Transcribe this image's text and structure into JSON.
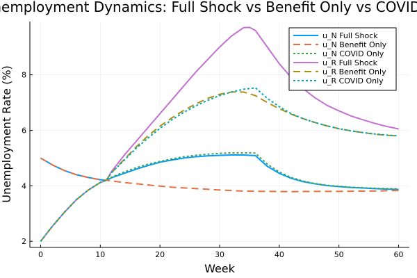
{
  "chart_data": {
    "type": "line",
    "title": "Unemployment Dynamics: Full Shock vs Benefit Only vs COVID Only",
    "xlabel": "Week",
    "ylabel": "Unemployment Rate (%)",
    "xlim": [
      -1.8,
      61.8
    ],
    "ylim": [
      1.78,
      9.92
    ],
    "xticks": [
      0,
      10,
      20,
      30,
      40,
      50,
      60
    ],
    "yticks": [
      2,
      4,
      6,
      8
    ],
    "grid": true,
    "legend_position": "top-right",
    "series": [
      {
        "name": "u_N Full Shock",
        "color": "#009AFA",
        "dash": "solid",
        "points": [
          [
            0,
            5.0
          ],
          [
            2,
            4.75
          ],
          [
            4,
            4.55
          ],
          [
            6,
            4.4
          ],
          [
            8,
            4.3
          ],
          [
            10,
            4.22
          ],
          [
            11,
            4.2
          ],
          [
            12,
            4.3
          ],
          [
            14,
            4.45
          ],
          [
            16,
            4.6
          ],
          [
            18,
            4.73
          ],
          [
            20,
            4.85
          ],
          [
            22,
            4.93
          ],
          [
            24,
            5.0
          ],
          [
            26,
            5.05
          ],
          [
            28,
            5.08
          ],
          [
            30,
            5.1
          ],
          [
            32,
            5.11
          ],
          [
            34,
            5.11
          ],
          [
            36,
            5.09
          ],
          [
            38,
            4.7
          ],
          [
            40,
            4.45
          ],
          [
            42,
            4.27
          ],
          [
            44,
            4.15
          ],
          [
            46,
            4.07
          ],
          [
            48,
            4.01
          ],
          [
            50,
            3.97
          ],
          [
            52,
            3.94
          ],
          [
            54,
            3.92
          ],
          [
            56,
            3.9
          ],
          [
            58,
            3.88
          ],
          [
            60,
            3.87
          ]
        ]
      },
      {
        "name": "u_N Benefit Only",
        "color": "#E36F47",
        "dash": "long-dash",
        "points": [
          [
            0,
            5.0
          ],
          [
            2,
            4.75
          ],
          [
            4,
            4.55
          ],
          [
            6,
            4.4
          ],
          [
            8,
            4.3
          ],
          [
            10,
            4.22
          ],
          [
            11,
            4.2
          ],
          [
            14,
            4.12
          ],
          [
            18,
            4.03
          ],
          [
            22,
            3.95
          ],
          [
            26,
            3.9
          ],
          [
            30,
            3.85
          ],
          [
            34,
            3.81
          ],
          [
            38,
            3.8
          ],
          [
            42,
            3.79
          ],
          [
            46,
            3.8
          ],
          [
            50,
            3.8
          ],
          [
            54,
            3.81
          ],
          [
            58,
            3.82
          ],
          [
            60,
            3.83
          ]
        ]
      },
      {
        "name": "u_N COVID Only",
        "color": "#3EA44E",
        "dash": "dot",
        "points": [
          [
            0,
            2.0
          ],
          [
            2,
            2.55
          ],
          [
            4,
            3.05
          ],
          [
            6,
            3.5
          ],
          [
            8,
            3.85
          ],
          [
            10,
            4.12
          ],
          [
            11,
            4.22
          ],
          [
            12,
            4.32
          ],
          [
            14,
            4.5
          ],
          [
            16,
            4.65
          ],
          [
            18,
            4.78
          ],
          [
            20,
            4.88
          ],
          [
            22,
            4.97
          ],
          [
            24,
            5.05
          ],
          [
            26,
            5.1
          ],
          [
            28,
            5.14
          ],
          [
            30,
            5.17
          ],
          [
            32,
            5.19
          ],
          [
            34,
            5.19
          ],
          [
            36,
            5.18
          ],
          [
            38,
            4.78
          ],
          [
            40,
            4.5
          ],
          [
            42,
            4.3
          ],
          [
            44,
            4.17
          ],
          [
            46,
            4.08
          ],
          [
            48,
            4.02
          ],
          [
            50,
            3.98
          ],
          [
            52,
            3.95
          ],
          [
            54,
            3.93
          ],
          [
            56,
            3.91
          ],
          [
            58,
            3.9
          ],
          [
            60,
            3.89
          ]
        ]
      },
      {
        "name": "u_R Full Shock",
        "color": "#C271D2",
        "dash": "solid",
        "points": [
          [
            0,
            2.0
          ],
          [
            2,
            2.55
          ],
          [
            4,
            3.05
          ],
          [
            6,
            3.5
          ],
          [
            8,
            3.85
          ],
          [
            10,
            4.12
          ],
          [
            11,
            4.2
          ],
          [
            12,
            4.55
          ],
          [
            14,
            5.1
          ],
          [
            16,
            5.6
          ],
          [
            18,
            6.1
          ],
          [
            20,
            6.6
          ],
          [
            22,
            7.1
          ],
          [
            24,
            7.6
          ],
          [
            26,
            8.1
          ],
          [
            28,
            8.55
          ],
          [
            30,
            9.0
          ],
          [
            32,
            9.4
          ],
          [
            34,
            9.7
          ],
          [
            35,
            9.71
          ],
          [
            36,
            9.6
          ],
          [
            38,
            9.0
          ],
          [
            40,
            8.4
          ],
          [
            42,
            7.9
          ],
          [
            44,
            7.5
          ],
          [
            46,
            7.17
          ],
          [
            48,
            6.9
          ],
          [
            50,
            6.7
          ],
          [
            52,
            6.52
          ],
          [
            54,
            6.38
          ],
          [
            56,
            6.25
          ],
          [
            58,
            6.14
          ],
          [
            60,
            6.05
          ]
        ]
      },
      {
        "name": "u_R Benefit Only",
        "color": "#AC8D18",
        "dash": "long-dash",
        "points": [
          [
            0,
            2.0
          ],
          [
            2,
            2.55
          ],
          [
            4,
            3.05
          ],
          [
            6,
            3.5
          ],
          [
            8,
            3.85
          ],
          [
            10,
            4.12
          ],
          [
            11,
            4.2
          ],
          [
            12,
            4.5
          ],
          [
            14,
            4.95
          ],
          [
            16,
            5.4
          ],
          [
            18,
            5.8
          ],
          [
            20,
            6.15
          ],
          [
            22,
            6.45
          ],
          [
            24,
            6.72
          ],
          [
            26,
            6.95
          ],
          [
            28,
            7.15
          ],
          [
            30,
            7.3
          ],
          [
            32,
            7.38
          ],
          [
            34,
            7.38
          ],
          [
            36,
            7.25
          ],
          [
            38,
            7.0
          ],
          [
            40,
            6.78
          ],
          [
            42,
            6.58
          ],
          [
            44,
            6.42
          ],
          [
            46,
            6.28
          ],
          [
            48,
            6.16
          ],
          [
            50,
            6.06
          ],
          [
            52,
            5.98
          ],
          [
            54,
            5.92
          ],
          [
            56,
            5.86
          ],
          [
            58,
            5.82
          ],
          [
            60,
            5.8
          ]
        ]
      },
      {
        "name": "u_R COVID Only",
        "color": "#00A9AD",
        "dash": "dot",
        "points": [
          [
            0,
            2.0
          ],
          [
            2,
            2.55
          ],
          [
            4,
            3.05
          ],
          [
            6,
            3.5
          ],
          [
            8,
            3.85
          ],
          [
            10,
            4.12
          ],
          [
            11,
            4.2
          ],
          [
            12,
            4.5
          ],
          [
            14,
            4.92
          ],
          [
            16,
            5.35
          ],
          [
            18,
            5.72
          ],
          [
            20,
            6.07
          ],
          [
            22,
            6.38
          ],
          [
            24,
            6.65
          ],
          [
            26,
            6.88
          ],
          [
            28,
            7.08
          ],
          [
            30,
            7.25
          ],
          [
            32,
            7.38
          ],
          [
            34,
            7.48
          ],
          [
            36,
            7.53
          ],
          [
            38,
            7.15
          ],
          [
            40,
            6.85
          ],
          [
            42,
            6.6
          ],
          [
            44,
            6.42
          ],
          [
            46,
            6.28
          ],
          [
            48,
            6.16
          ],
          [
            50,
            6.06
          ],
          [
            52,
            5.98
          ],
          [
            54,
            5.92
          ],
          [
            56,
            5.87
          ],
          [
            58,
            5.83
          ],
          [
            60,
            5.8
          ]
        ]
      }
    ]
  }
}
